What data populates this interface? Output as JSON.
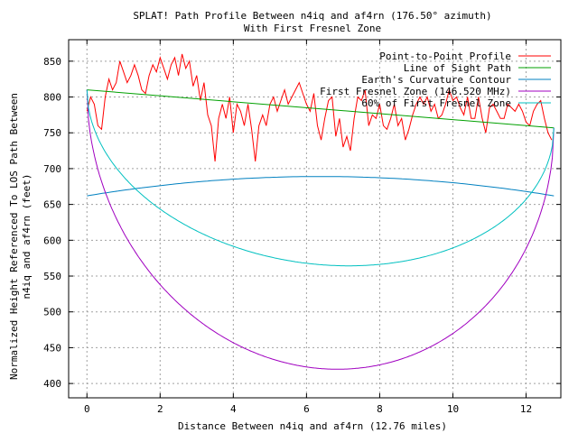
{
  "chart_data": {
    "type": "line",
    "title": "SPLAT! Path Profile Between n4iq and af4rn (176.50° azimuth)",
    "subtitle": "With First Fresnel Zone",
    "xlabel": "Distance Between n4iq and af4rn (12.76 miles)",
    "ylabel_line1": "Normalized Height Referenced To LOS Path Between",
    "ylabel_line2": "n4iq and af4rn (feet)",
    "xlim": [
      -0.5,
      12.95
    ],
    "ylim": [
      380,
      880
    ],
    "xticks": [
      0,
      2,
      4,
      6,
      8,
      10,
      12
    ],
    "yticks": [
      400,
      450,
      500,
      550,
      600,
      650,
      700,
      750,
      800,
      850
    ],
    "grid": true,
    "legend_position": "top-right",
    "series": [
      {
        "name": "Point-to-Point Profile",
        "color": "#ff0000",
        "x": [
          0,
          0.1,
          0.2,
          0.3,
          0.4,
          0.5,
          0.6,
          0.7,
          0.8,
          0.9,
          1.0,
          1.1,
          1.2,
          1.3,
          1.4,
          1.5,
          1.6,
          1.7,
          1.8,
          1.9,
          2.0,
          2.1,
          2.2,
          2.3,
          2.4,
          2.5,
          2.6,
          2.7,
          2.8,
          2.9,
          3.0,
          3.1,
          3.2,
          3.3,
          3.4,
          3.5,
          3.6,
          3.7,
          3.8,
          3.9,
          4.0,
          4.1,
          4.2,
          4.3,
          4.4,
          4.5,
          4.6,
          4.7,
          4.8,
          4.9,
          5.0,
          5.1,
          5.2,
          5.3,
          5.4,
          5.5,
          5.6,
          5.7,
          5.8,
          5.9,
          6.0,
          6.1,
          6.2,
          6.3,
          6.4,
          6.5,
          6.6,
          6.7,
          6.8,
          6.9,
          7.0,
          7.1,
          7.2,
          7.3,
          7.4,
          7.5,
          7.6,
          7.7,
          7.8,
          7.9,
          8.0,
          8.1,
          8.2,
          8.3,
          8.4,
          8.5,
          8.6,
          8.7,
          8.8,
          8.9,
          9.0,
          9.1,
          9.2,
          9.3,
          9.4,
          9.5,
          9.6,
          9.7,
          9.8,
          9.9,
          10.0,
          10.1,
          10.2,
          10.3,
          10.4,
          10.5,
          10.6,
          10.7,
          10.8,
          10.9,
          11.0,
          11.1,
          11.2,
          11.3,
          11.4,
          11.5,
          11.6,
          11.7,
          11.8,
          11.9,
          12.0,
          12.1,
          12.2,
          12.3,
          12.4,
          12.5,
          12.6,
          12.7
        ],
        "y": [
          780,
          800,
          790,
          760,
          755,
          800,
          825,
          810,
          820,
          850,
          835,
          820,
          830,
          845,
          830,
          810,
          805,
          830,
          845,
          835,
          855,
          840,
          825,
          845,
          855,
          830,
          860,
          840,
          850,
          815,
          830,
          795,
          820,
          775,
          760,
          710,
          770,
          790,
          770,
          800,
          750,
          790,
          780,
          760,
          790,
          755,
          710,
          760,
          775,
          760,
          790,
          800,
          780,
          795,
          810,
          790,
          800,
          810,
          820,
          805,
          790,
          780,
          805,
          760,
          740,
          770,
          795,
          800,
          745,
          770,
          730,
          745,
          725,
          770,
          800,
          795,
          810,
          760,
          775,
          770,
          790,
          760,
          755,
          770,
          790,
          760,
          770,
          740,
          755,
          775,
          790,
          800,
          790,
          800,
          780,
          790,
          770,
          775,
          790,
          810,
          795,
          800,
          785,
          775,
          800,
          770,
          770,
          800,
          770,
          750,
          785,
          790,
          780,
          770,
          770,
          790,
          785,
          780,
          790,
          780,
          765,
          760,
          780,
          790,
          795,
          770,
          750,
          740
        ]
      },
      {
        "name": "Line of Sight Path",
        "color": "#00a000",
        "x": [
          0,
          12.76
        ],
        "y": [
          810,
          757
        ]
      },
      {
        "name": "Earth's Curvature Contour",
        "color": "#0080c0",
        "curve": "parabola",
        "x_range": [
          0,
          12.76
        ],
        "endpoints": [
          662,
          662
        ],
        "peak": 689
      },
      {
        "name": "First Fresnel Zone (146.520 MHz)",
        "color": "#a000c0",
        "curve": "ellipse",
        "depth": 362.6
      },
      {
        "name": "60% of First Fresnel Zone",
        "color": "#00c0c0",
        "curve": "ellipse",
        "depth": 217.6
      }
    ]
  }
}
